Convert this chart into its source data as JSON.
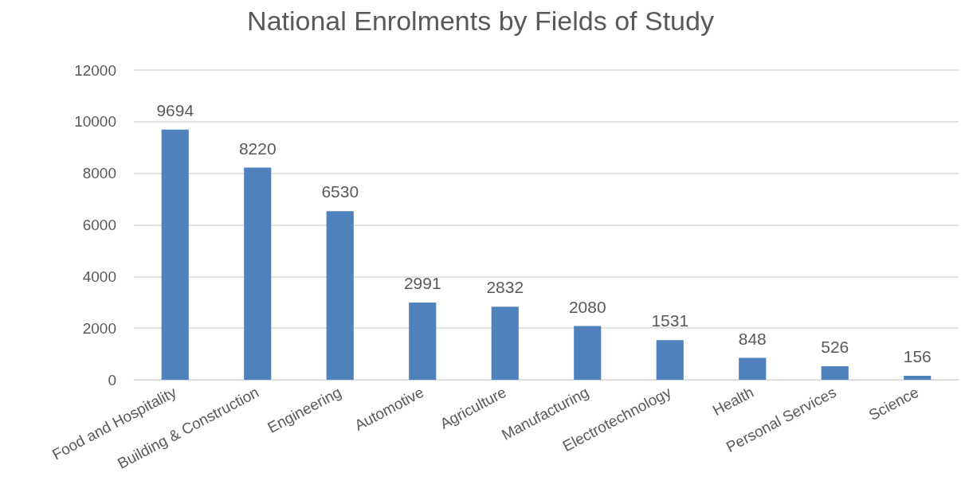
{
  "chart_data": {
    "type": "bar",
    "title": "National Enrolments by Fields of Study",
    "categories": [
      "Food and Hospitality",
      "Building & Construction",
      "Engineering",
      "Automotive",
      "Agriculture",
      "Manufacturing",
      "Electrotechnology",
      "Health",
      "Personal Services",
      "Science"
    ],
    "values": [
      9694,
      8220,
      6530,
      2991,
      2832,
      2080,
      1531,
      848,
      526,
      156
    ],
    "color": "#4f81bd",
    "ylim": [
      0,
      12000
    ],
    "yticks": [
      0,
      2000,
      4000,
      6000,
      8000,
      10000,
      12000
    ],
    "grid": "y",
    "data_labels": true
  }
}
